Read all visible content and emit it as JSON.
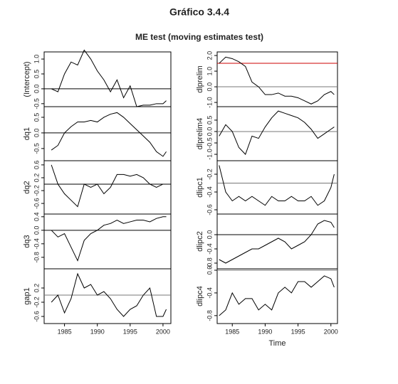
{
  "title": "Gráfico 3.4.4",
  "subtitle": "ME test (moving estimates test)",
  "chart_data": [
    {
      "type": "line",
      "ylabel": "(Intercept)",
      "color": "#000",
      "x": [
        1983,
        1984,
        1985,
        1986,
        1987,
        1988,
        1989,
        1990,
        1991,
        1992,
        1993,
        1994,
        1995,
        1996,
        1997,
        1998,
        1999,
        2000,
        2000.5
      ],
      "values": [
        0.0,
        -0.1,
        0.5,
        0.9,
        0.8,
        1.3,
        1.0,
        0.6,
        0.3,
        -0.1,
        0.3,
        -0.3,
        0.1,
        -0.6,
        -0.55,
        -0.55,
        -0.5,
        -0.5,
        -0.4
      ],
      "xlim": [
        1981.9,
        2001.2
      ],
      "ylim": [
        -0.6,
        1.24
      ],
      "yticks": [
        -0.5,
        {
          "value": 0,
          "label": "0.0"
        },
        0.5,
        {
          "value": 1,
          "label": "1.0"
        }
      ],
      "hlines": [
        {
          "value": 0,
          "color": "#000"
        }
      ]
    },
    {
      "type": "line",
      "ylabel": "dq1",
      "color": "#000",
      "x": [
        1983,
        1984,
        1985,
        1986,
        1987,
        1988,
        1989,
        1990,
        1991,
        1992,
        1993,
        1994,
        1995,
        1996,
        1997,
        1998,
        1999,
        2000,
        2000.5
      ],
      "values": [
        -0.55,
        -0.4,
        0.0,
        0.2,
        0.35,
        0.35,
        0.4,
        0.35,
        0.5,
        0.6,
        0.65,
        0.5,
        0.3,
        0.1,
        -0.1,
        -0.3,
        -0.6,
        -0.75,
        -0.6
      ],
      "xlim": [
        1981.9,
        2001.2
      ],
      "ylim": [
        -0.89,
        0.84
      ],
      "yticks": [
        -0.5,
        {
          "value": 0,
          "label": "0.0"
        },
        0.5
      ],
      "hlines": [
        {
          "value": 0,
          "color": "#000"
        }
      ]
    },
    {
      "type": "line",
      "ylabel": "dq2",
      "color": "#000",
      "x": [
        1983,
        1984,
        1985,
        1986,
        1987,
        1988,
        1989,
        1990,
        1991,
        1992,
        1993,
        1994,
        1995,
        1996,
        1997,
        1998,
        1999,
        2000,
        2000.5
      ],
      "values": [
        0.6,
        0.0,
        -0.3,
        -0.5,
        -0.7,
        0.0,
        -0.1,
        0.0,
        -0.3,
        -0.1,
        0.3,
        0.3,
        0.25,
        0.3,
        0.2,
        0.0,
        -0.1,
        0.0,
        0.0
      ],
      "xlim": [
        1981.9,
        2001.2
      ],
      "ylim": [
        -0.93,
        0.73
      ],
      "yticks": [
        -0.6,
        -0.2,
        0.2,
        0.6
      ],
      "hlines": [
        {
          "value": 0,
          "color": "#000"
        }
      ]
    },
    {
      "type": "line",
      "ylabel": "dq3",
      "color": "#000",
      "x": [
        1983,
        1984,
        1985,
        1986,
        1987,
        1988,
        1989,
        1990,
        1991,
        1992,
        1993,
        1994,
        1995,
        1996,
        1997,
        1998,
        1999,
        2000,
        2000.5
      ],
      "values": [
        0.0,
        -0.2,
        -0.1,
        -0.5,
        -0.9,
        -0.3,
        -0.1,
        0.0,
        0.15,
        0.2,
        0.3,
        0.2,
        0.25,
        0.3,
        0.3,
        0.25,
        0.35,
        0.4,
        0.4
      ],
      "xlim": [
        1981.9,
        2001.2
      ],
      "ylim": [
        -1.14,
        0.48
      ],
      "yticks": [
        -0.8,
        -0.4,
        {
          "value": 0,
          "label": "0.0"
        },
        0.4
      ],
      "hlines": [
        {
          "value": 0,
          "color": "#000"
        }
      ]
    },
    {
      "type": "line",
      "ylabel": "gap1",
      "color": "#000",
      "x": [
        1983,
        1984,
        1985,
        1986,
        1987,
        1988,
        1989,
        1990,
        1991,
        1992,
        1993,
        1994,
        1995,
        1996,
        1997,
        1998,
        1999,
        2000,
        2000.5
      ],
      "values": [
        -0.2,
        0.0,
        -0.5,
        -0.1,
        0.6,
        0.2,
        0.3,
        0.0,
        0.1,
        -0.1,
        -0.4,
        -0.6,
        -0.4,
        -0.3,
        0.0,
        0.2,
        -0.6,
        -0.6,
        -0.4
      ],
      "xlim": [
        1981.9,
        2001.2
      ],
      "ylim": [
        -0.8,
        0.74
      ],
      "yticks": [
        -0.6,
        -0.2,
        0.2
      ],
      "xticks": [
        1985,
        1990,
        1995,
        2000
      ],
      "hlines": [
        {
          "value": 0,
          "color": "#777"
        }
      ]
    },
    {
      "type": "line",
      "ylabel": "dlprelim",
      "color": "#000",
      "x": [
        1983,
        1984,
        1985,
        1986,
        1987,
        1988,
        1989,
        1990,
        1991,
        1992,
        1993,
        1994,
        1995,
        1996,
        1997,
        1998,
        1999,
        2000,
        2000.5
      ],
      "values": [
        1.5,
        1.9,
        1.8,
        1.6,
        1.3,
        0.3,
        0.0,
        -0.5,
        -0.5,
        -0.4,
        -0.6,
        -0.6,
        -0.7,
        -0.9,
        -1.1,
        -0.9,
        -0.5,
        -0.3,
        -0.5
      ],
      "xlim": [
        1982.7,
        2001.0
      ],
      "ylim": [
        -1.27,
        2.23
      ],
      "yticks": [
        {
          "value": -1,
          "label": "-1.0"
        },
        {
          "value": 0,
          "label": "0.0"
        },
        {
          "value": 1,
          "label": "1.0"
        },
        {
          "value": 2,
          "label": "2.0"
        }
      ],
      "hlines": [
        {
          "value": 0,
          "color": "#777"
        },
        {
          "value": 1.5,
          "color": "#cc0000"
        }
      ]
    },
    {
      "type": "line",
      "ylabel": "dlprelim4",
      "color": "#000",
      "x": [
        1983,
        1984,
        1985,
        1986,
        1987,
        1988,
        1989,
        1990,
        1991,
        1992,
        1993,
        1994,
        1995,
        1996,
        1997,
        1998,
        1999,
        2000,
        2000.5
      ],
      "values": [
        -0.2,
        0.3,
        0.0,
        -0.7,
        -1.0,
        -0.2,
        -0.3,
        0.2,
        0.6,
        0.9,
        0.8,
        0.7,
        0.6,
        0.4,
        0.1,
        -0.3,
        -0.1,
        0.1,
        0.2
      ],
      "xlim": [
        1982.7,
        2001.0
      ],
      "ylim": [
        -1.28,
        1.09
      ],
      "yticks": [
        {
          "value": -1,
          "label": "-1.0"
        },
        -0.5,
        {
          "value": 0,
          "label": "0.0"
        },
        0.5
      ],
      "hlines": [
        {
          "value": 0,
          "color": "#777"
        }
      ]
    },
    {
      "type": "line",
      "ylabel": "dlipc1",
      "color": "#000",
      "x": [
        1983,
        1984,
        1985,
        1986,
        1987,
        1988,
        1989,
        1990,
        1991,
        1992,
        1993,
        1994,
        1995,
        1996,
        1997,
        1998,
        1999,
        2000,
        2000.5
      ],
      "values": [
        -0.1,
        -0.4,
        -0.5,
        -0.45,
        -0.5,
        -0.45,
        -0.5,
        -0.55,
        -0.45,
        -0.5,
        -0.5,
        -0.45,
        -0.5,
        -0.5,
        -0.45,
        -0.55,
        -0.5,
        -0.35,
        -0.2
      ],
      "xlim": [
        1982.7,
        2001.0
      ],
      "ylim": [
        -0.648,
        -0.048
      ],
      "yticks": [
        -0.6,
        -0.4,
        -0.2
      ],
      "hlines": [
        {
          "value": -0.3,
          "color": "#777"
        }
      ]
    },
    {
      "type": "line",
      "ylabel": "dlipc2",
      "color": "#000",
      "x": [
        1983,
        1984,
        1985,
        1986,
        1987,
        1988,
        1989,
        1990,
        1991,
        1992,
        1993,
        1994,
        1995,
        1996,
        1997,
        1998,
        1999,
        2000,
        2000.5
      ],
      "values": [
        -0.7,
        -0.8,
        -0.7,
        -0.6,
        -0.5,
        -0.4,
        -0.4,
        -0.3,
        -0.2,
        -0.1,
        -0.2,
        -0.4,
        -0.3,
        -0.2,
        0.0,
        0.3,
        0.4,
        0.35,
        0.2
      ],
      "xlim": [
        1982.7,
        2001.0
      ],
      "ylim": [
        -0.96,
        0.58
      ],
      "yticks": [
        -0.8,
        -0.4,
        {
          "value": 0,
          "label": "0.0"
        }
      ],
      "hlines": [
        {
          "value": 0,
          "color": "#000"
        }
      ]
    },
    {
      "type": "line",
      "ylabel": "dlipc4",
      "xlabel": "Time",
      "color": "#000",
      "x": [
        1983,
        1984,
        1985,
        1986,
        1987,
        1988,
        1989,
        1990,
        1991,
        1992,
        1993,
        1994,
        1995,
        1996,
        1997,
        1998,
        1999,
        2000,
        2000.5
      ],
      "values": [
        -0.8,
        -0.7,
        -0.4,
        -0.6,
        -0.5,
        -0.5,
        -0.7,
        -0.6,
        -0.7,
        -0.4,
        -0.3,
        -0.4,
        -0.2,
        -0.2,
        -0.3,
        -0.2,
        -0.1,
        -0.15,
        -0.3
      ],
      "xlim": [
        1982.7,
        2001.0
      ],
      "ylim": [
        -0.94,
        0.025
      ],
      "yticks": [
        -0.8,
        -0.4,
        {
          "value": 0,
          "label": "0.0"
        }
      ],
      "xticks": [
        1985,
        1990,
        1995,
        2000
      ],
      "hlines": [
        {
          "value": 0,
          "color": "#777"
        }
      ]
    }
  ]
}
